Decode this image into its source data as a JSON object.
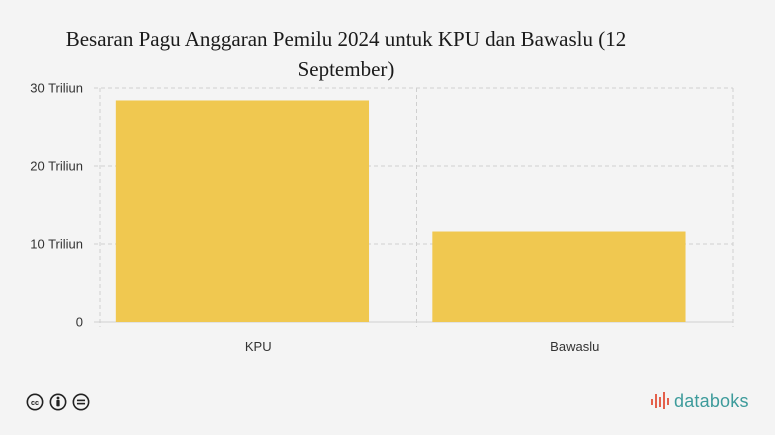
{
  "title": "Besaran Pagu Anggaran Pemilu 2024 untuk KPU dan Bawaslu (12 September)",
  "chart_data": {
    "type": "bar",
    "categories": [
      "KPU",
      "Bawaslu"
    ],
    "values": [
      28.4,
      11.6
    ],
    "ylim": [
      0,
      30
    ],
    "yticks": [
      {
        "value": 0,
        "label": "0"
      },
      {
        "value": 10,
        "label": "10 Triliun"
      },
      {
        "value": 20,
        "label": "20 Triliun"
      },
      {
        "value": 30,
        "label": "30 Triliun"
      }
    ],
    "bar_color": "#f0c850",
    "grid": true
  },
  "footer": {
    "license_icons": [
      "cc-icon",
      "by-icon",
      "nd-icon"
    ],
    "brand": "databoks",
    "brand_color": "#3d9b9b"
  }
}
